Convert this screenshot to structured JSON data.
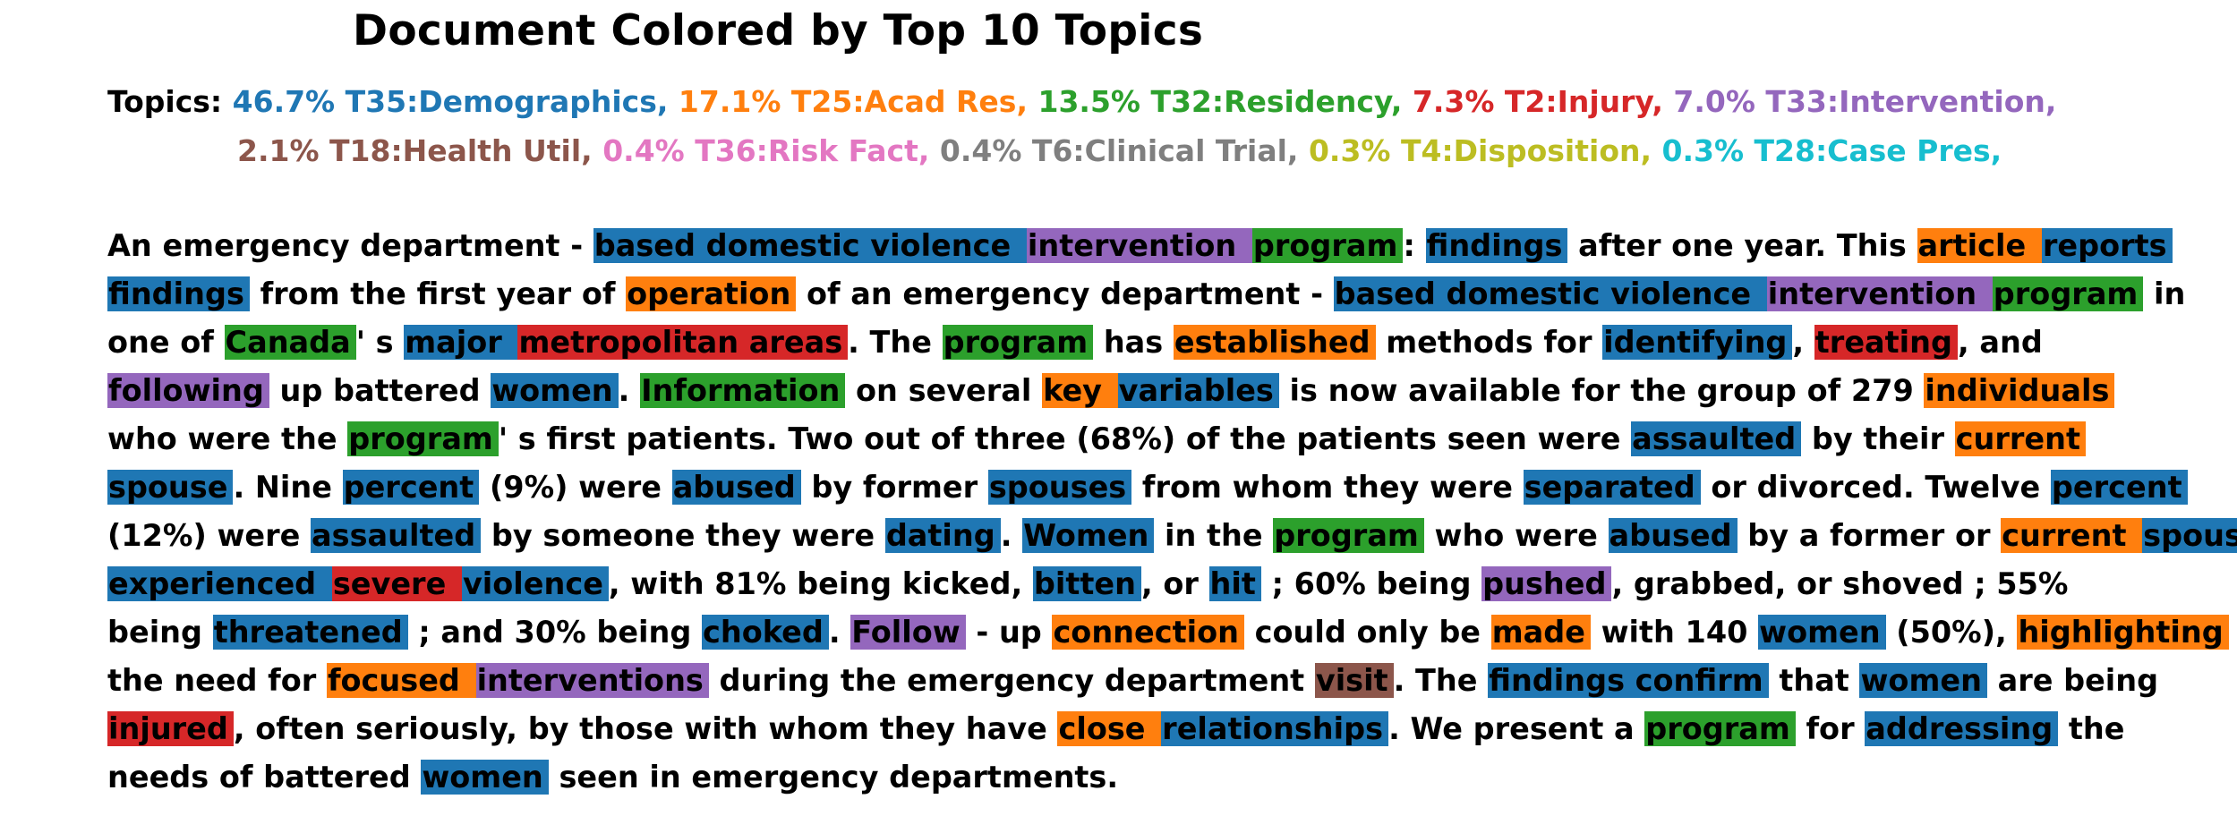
{
  "title": "Document Colored by Top 10 Topics",
  "topics_label": "Topics:",
  "topics": [
    {
      "text": "46.7% T35:Demographics,",
      "color": "#1f77b4"
    },
    {
      "text": "17.1% T25:Acad Res,",
      "color": "#ff7f0e"
    },
    {
      "text": "13.5% T32:Residency,",
      "color": "#2ca02c"
    },
    {
      "text": "7.3% T2:Injury,",
      "color": "#d62728"
    },
    {
      "text": "7.0% T33:Intervention,",
      "color": "#9467bd"
    },
    {
      "text": "2.1% T18:Health Util,",
      "color": "#8c564b"
    },
    {
      "text": "0.4% T36:Risk Fact,",
      "color": "#e377c2"
    },
    {
      "text": "0.4% T6:Clinical Trial,",
      "color": "#7f7f7f"
    },
    {
      "text": "0.3% T4:Disposition,",
      "color": "#bcbd22"
    },
    {
      "text": "0.3% T28:Case Pres,",
      "color": "#17becf"
    }
  ],
  "document": [
    {
      "t": "An emergency department - "
    },
    {
      "t": "based domestic violence ",
      "c": "#1f77b4"
    },
    {
      "t": "intervention ",
      "c": "#9467bd"
    },
    {
      "t": "program",
      "c": "#2ca02c"
    },
    {
      "t": ": "
    },
    {
      "t": "findings",
      "c": "#1f77b4"
    },
    {
      "t": " after one year. This "
    },
    {
      "t": "article ",
      "c": "#ff7f0e"
    },
    {
      "t": "reports",
      "c": "#1f77b4"
    },
    {
      "t": "\n"
    },
    {
      "t": "findings",
      "c": "#1f77b4"
    },
    {
      "t": " from the first year of "
    },
    {
      "t": "operation",
      "c": "#ff7f0e"
    },
    {
      "t": " of an emergency department - "
    },
    {
      "t": "based domestic violence ",
      "c": "#1f77b4"
    },
    {
      "t": "intervention ",
      "c": "#9467bd"
    },
    {
      "t": "program",
      "c": "#2ca02c"
    },
    {
      "t": " in"
    },
    {
      "t": "\n"
    },
    {
      "t": "one of "
    },
    {
      "t": "Canada",
      "c": "#2ca02c"
    },
    {
      "t": "' s "
    },
    {
      "t": "major ",
      "c": "#1f77b4"
    },
    {
      "t": "metropolitan areas",
      "c": "#d62728"
    },
    {
      "t": ". The "
    },
    {
      "t": "program",
      "c": "#2ca02c"
    },
    {
      "t": " has "
    },
    {
      "t": "established",
      "c": "#ff7f0e"
    },
    {
      "t": " methods for "
    },
    {
      "t": "identifying",
      "c": "#1f77b4"
    },
    {
      "t": ", "
    },
    {
      "t": "treating",
      "c": "#d62728"
    },
    {
      "t": ", and"
    },
    {
      "t": "\n"
    },
    {
      "t": "following",
      "c": "#9467bd"
    },
    {
      "t": " up battered "
    },
    {
      "t": "women",
      "c": "#1f77b4"
    },
    {
      "t": ". "
    },
    {
      "t": "Information",
      "c": "#2ca02c"
    },
    {
      "t": " on several "
    },
    {
      "t": "key ",
      "c": "#ff7f0e"
    },
    {
      "t": "variables",
      "c": "#1f77b4"
    },
    {
      "t": " is now available for the group of 279 "
    },
    {
      "t": "individuals",
      "c": "#ff7f0e"
    },
    {
      "t": "\n"
    },
    {
      "t": "who were the "
    },
    {
      "t": "program",
      "c": "#2ca02c"
    },
    {
      "t": "' s first patients. Two out of three (68%) of the patients seen were "
    },
    {
      "t": "assaulted",
      "c": "#1f77b4"
    },
    {
      "t": " by their "
    },
    {
      "t": "current",
      "c": "#ff7f0e"
    },
    {
      "t": "\n"
    },
    {
      "t": "spouse",
      "c": "#1f77b4"
    },
    {
      "t": ". Nine "
    },
    {
      "t": "percent",
      "c": "#1f77b4"
    },
    {
      "t": " (9%) were "
    },
    {
      "t": "abused",
      "c": "#1f77b4"
    },
    {
      "t": " by former "
    },
    {
      "t": "spouses",
      "c": "#1f77b4"
    },
    {
      "t": " from whom they were "
    },
    {
      "t": "separated",
      "c": "#1f77b4"
    },
    {
      "t": " or divorced. Twelve "
    },
    {
      "t": "percent",
      "c": "#1f77b4"
    },
    {
      "t": "\n"
    },
    {
      "t": "(12%) were "
    },
    {
      "t": "assaulted",
      "c": "#1f77b4"
    },
    {
      "t": " by someone they were "
    },
    {
      "t": "dating",
      "c": "#1f77b4"
    },
    {
      "t": ". "
    },
    {
      "t": "Women",
      "c": "#1f77b4"
    },
    {
      "t": " in the "
    },
    {
      "t": "program",
      "c": "#2ca02c"
    },
    {
      "t": " who were "
    },
    {
      "t": "abused",
      "c": "#1f77b4"
    },
    {
      "t": " by a former or "
    },
    {
      "t": "current ",
      "c": "#ff7f0e"
    },
    {
      "t": "spouse",
      "c": "#1f77b4"
    },
    {
      "t": "\n"
    },
    {
      "t": "experienced ",
      "c": "#1f77b4"
    },
    {
      "t": "severe ",
      "c": "#d62728"
    },
    {
      "t": "violence",
      "c": "#1f77b4"
    },
    {
      "t": ", with 81% being kicked, "
    },
    {
      "t": "bitten",
      "c": "#1f77b4"
    },
    {
      "t": ", or "
    },
    {
      "t": "hit",
      "c": "#1f77b4"
    },
    {
      "t": " ; 60% being "
    },
    {
      "t": "pushed",
      "c": "#9467bd"
    },
    {
      "t": ", grabbed, or shoved ; 55%"
    },
    {
      "t": "\n"
    },
    {
      "t": "being "
    },
    {
      "t": "threatened",
      "c": "#1f77b4"
    },
    {
      "t": " ; and 30% being "
    },
    {
      "t": "choked",
      "c": "#1f77b4"
    },
    {
      "t": ". "
    },
    {
      "t": "Follow",
      "c": "#9467bd"
    },
    {
      "t": " - up "
    },
    {
      "t": "connection",
      "c": "#ff7f0e"
    },
    {
      "t": " could only be "
    },
    {
      "t": "made",
      "c": "#ff7f0e"
    },
    {
      "t": " with 140 "
    },
    {
      "t": "women",
      "c": "#1f77b4"
    },
    {
      "t": " (50%), "
    },
    {
      "t": "highlighting",
      "c": "#ff7f0e"
    },
    {
      "t": "\n"
    },
    {
      "t": "the need for "
    },
    {
      "t": "focused ",
      "c": "#ff7f0e"
    },
    {
      "t": "interventions",
      "c": "#9467bd"
    },
    {
      "t": " during the emergency department "
    },
    {
      "t": "visit",
      "c": "#8c564b"
    },
    {
      "t": ". The "
    },
    {
      "t": "findings confirm",
      "c": "#1f77b4"
    },
    {
      "t": " that "
    },
    {
      "t": "women",
      "c": "#1f77b4"
    },
    {
      "t": " are being"
    },
    {
      "t": "\n"
    },
    {
      "t": "injured",
      "c": "#d62728"
    },
    {
      "t": ", often seriously, by those with whom they have "
    },
    {
      "t": "close ",
      "c": "#ff7f0e"
    },
    {
      "t": "relationships",
      "c": "#1f77b4"
    },
    {
      "t": ". We present a "
    },
    {
      "t": "program",
      "c": "#2ca02c"
    },
    {
      "t": " for "
    },
    {
      "t": "addressing",
      "c": "#1f77b4"
    },
    {
      "t": " the"
    },
    {
      "t": "\n"
    },
    {
      "t": "needs of battered "
    },
    {
      "t": "women",
      "c": "#1f77b4"
    },
    {
      "t": " seen in emergency departments."
    }
  ]
}
